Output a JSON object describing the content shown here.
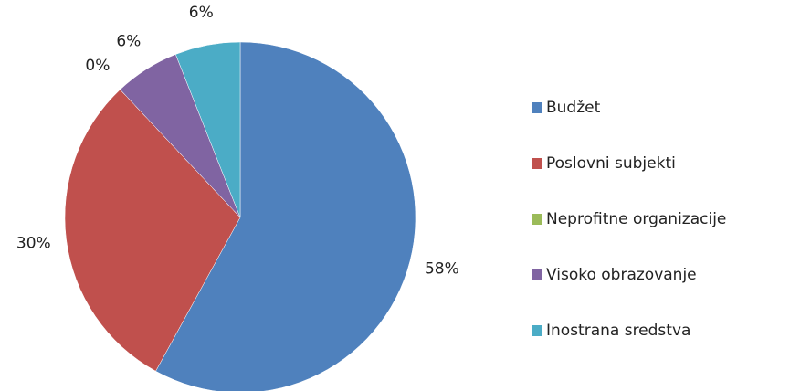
{
  "chart_data": {
    "type": "pie",
    "categories": [
      "Budžet",
      "Poslovni subjekti",
      "Neprofitne organizacije",
      "Visoko obrazovanje",
      "Inostrana sredstva"
    ],
    "values": [
      58,
      30,
      0,
      6,
      6
    ],
    "value_labels": [
      "58%",
      "30%",
      "0%",
      "6%",
      "6%"
    ],
    "colors": [
      "#4f81bd",
      "#c0504d",
      "#9bbb59",
      "#8064a2",
      "#4bacc6"
    ],
    "legend": "right"
  }
}
